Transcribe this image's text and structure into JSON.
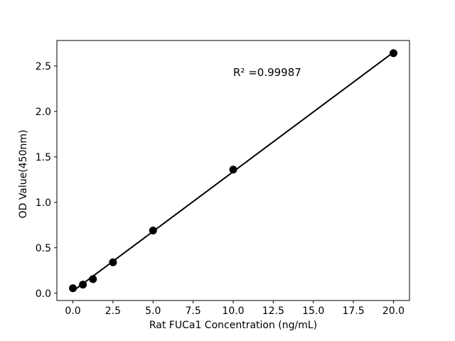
{
  "chart_data": {
    "type": "scatter",
    "title": "",
    "xlabel": "Rat FUCa1 Concentration (ng/mL)",
    "ylabel": "OD Value(450nm)",
    "annotation": "R² =0.99987",
    "x": [
      0,
      0.625,
      1.25,
      2.5,
      5,
      10,
      20
    ],
    "y": [
      0.055,
      0.095,
      0.155,
      0.34,
      0.69,
      1.36,
      2.64
    ],
    "fit_line": "linear least-squares fit drawn from first to last data point",
    "xlim": [
      -1.0,
      21.0
    ],
    "ylim": [
      -0.08,
      2.78
    ],
    "xticks": [
      0.0,
      2.5,
      5.0,
      7.5,
      10.0,
      12.5,
      15.0,
      17.5,
      20.0
    ],
    "xtick_labels": [
      "0.0",
      "2.5",
      "5.0",
      "7.5",
      "10.0",
      "12.5",
      "15.0",
      "17.5",
      "20.0"
    ],
    "yticks": [
      0.0,
      0.5,
      1.0,
      1.5,
      2.0,
      2.5
    ],
    "ytick_labels": [
      "0.0",
      "0.5",
      "1.0",
      "1.5",
      "2.0",
      "2.5"
    ],
    "grid": false,
    "legend": "none",
    "color": "#000000",
    "background": "#ffffff"
  }
}
